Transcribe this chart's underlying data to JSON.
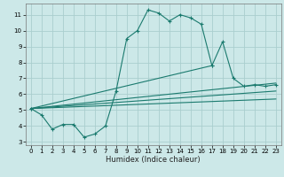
{
  "xlabel": "Humidex (Indice chaleur)",
  "ylabel": "",
  "bg_color": "#cce8e8",
  "line_color": "#1a7a6e",
  "grid_color": "#aacece",
  "xlim": [
    -0.5,
    23.5
  ],
  "ylim": [
    2.8,
    11.7
  ],
  "yticks": [
    3,
    4,
    5,
    6,
    7,
    8,
    9,
    10,
    11
  ],
  "xticks": [
    0,
    1,
    2,
    3,
    4,
    5,
    6,
    7,
    8,
    9,
    10,
    11,
    12,
    13,
    14,
    15,
    16,
    17,
    18,
    19,
    20,
    21,
    22,
    23
  ],
  "series": [
    {
      "x": [
        0,
        1,
        2,
        3,
        4,
        5,
        6,
        7,
        8,
        9,
        10,
        11,
        12,
        13,
        14,
        15,
        16,
        17
      ],
      "y": [
        5.1,
        4.7,
        3.8,
        4.1,
        4.1,
        3.3,
        3.5,
        4.0,
        6.2,
        9.5,
        10.0,
        11.3,
        11.1,
        10.6,
        11.0,
        10.8,
        10.4,
        7.8
      ],
      "marker": true
    },
    {
      "x": [
        0,
        17,
        18,
        19,
        20,
        21,
        22,
        23
      ],
      "y": [
        5.1,
        7.8,
        9.3,
        7.0,
        6.5,
        6.6,
        6.5,
        6.6
      ],
      "marker": true
    },
    {
      "x": [
        0,
        23
      ],
      "y": [
        5.1,
        6.7
      ],
      "marker": false
    },
    {
      "x": [
        0,
        23
      ],
      "y": [
        5.1,
        6.2
      ],
      "marker": false
    },
    {
      "x": [
        0,
        23
      ],
      "y": [
        5.1,
        5.7
      ],
      "marker": false
    }
  ]
}
